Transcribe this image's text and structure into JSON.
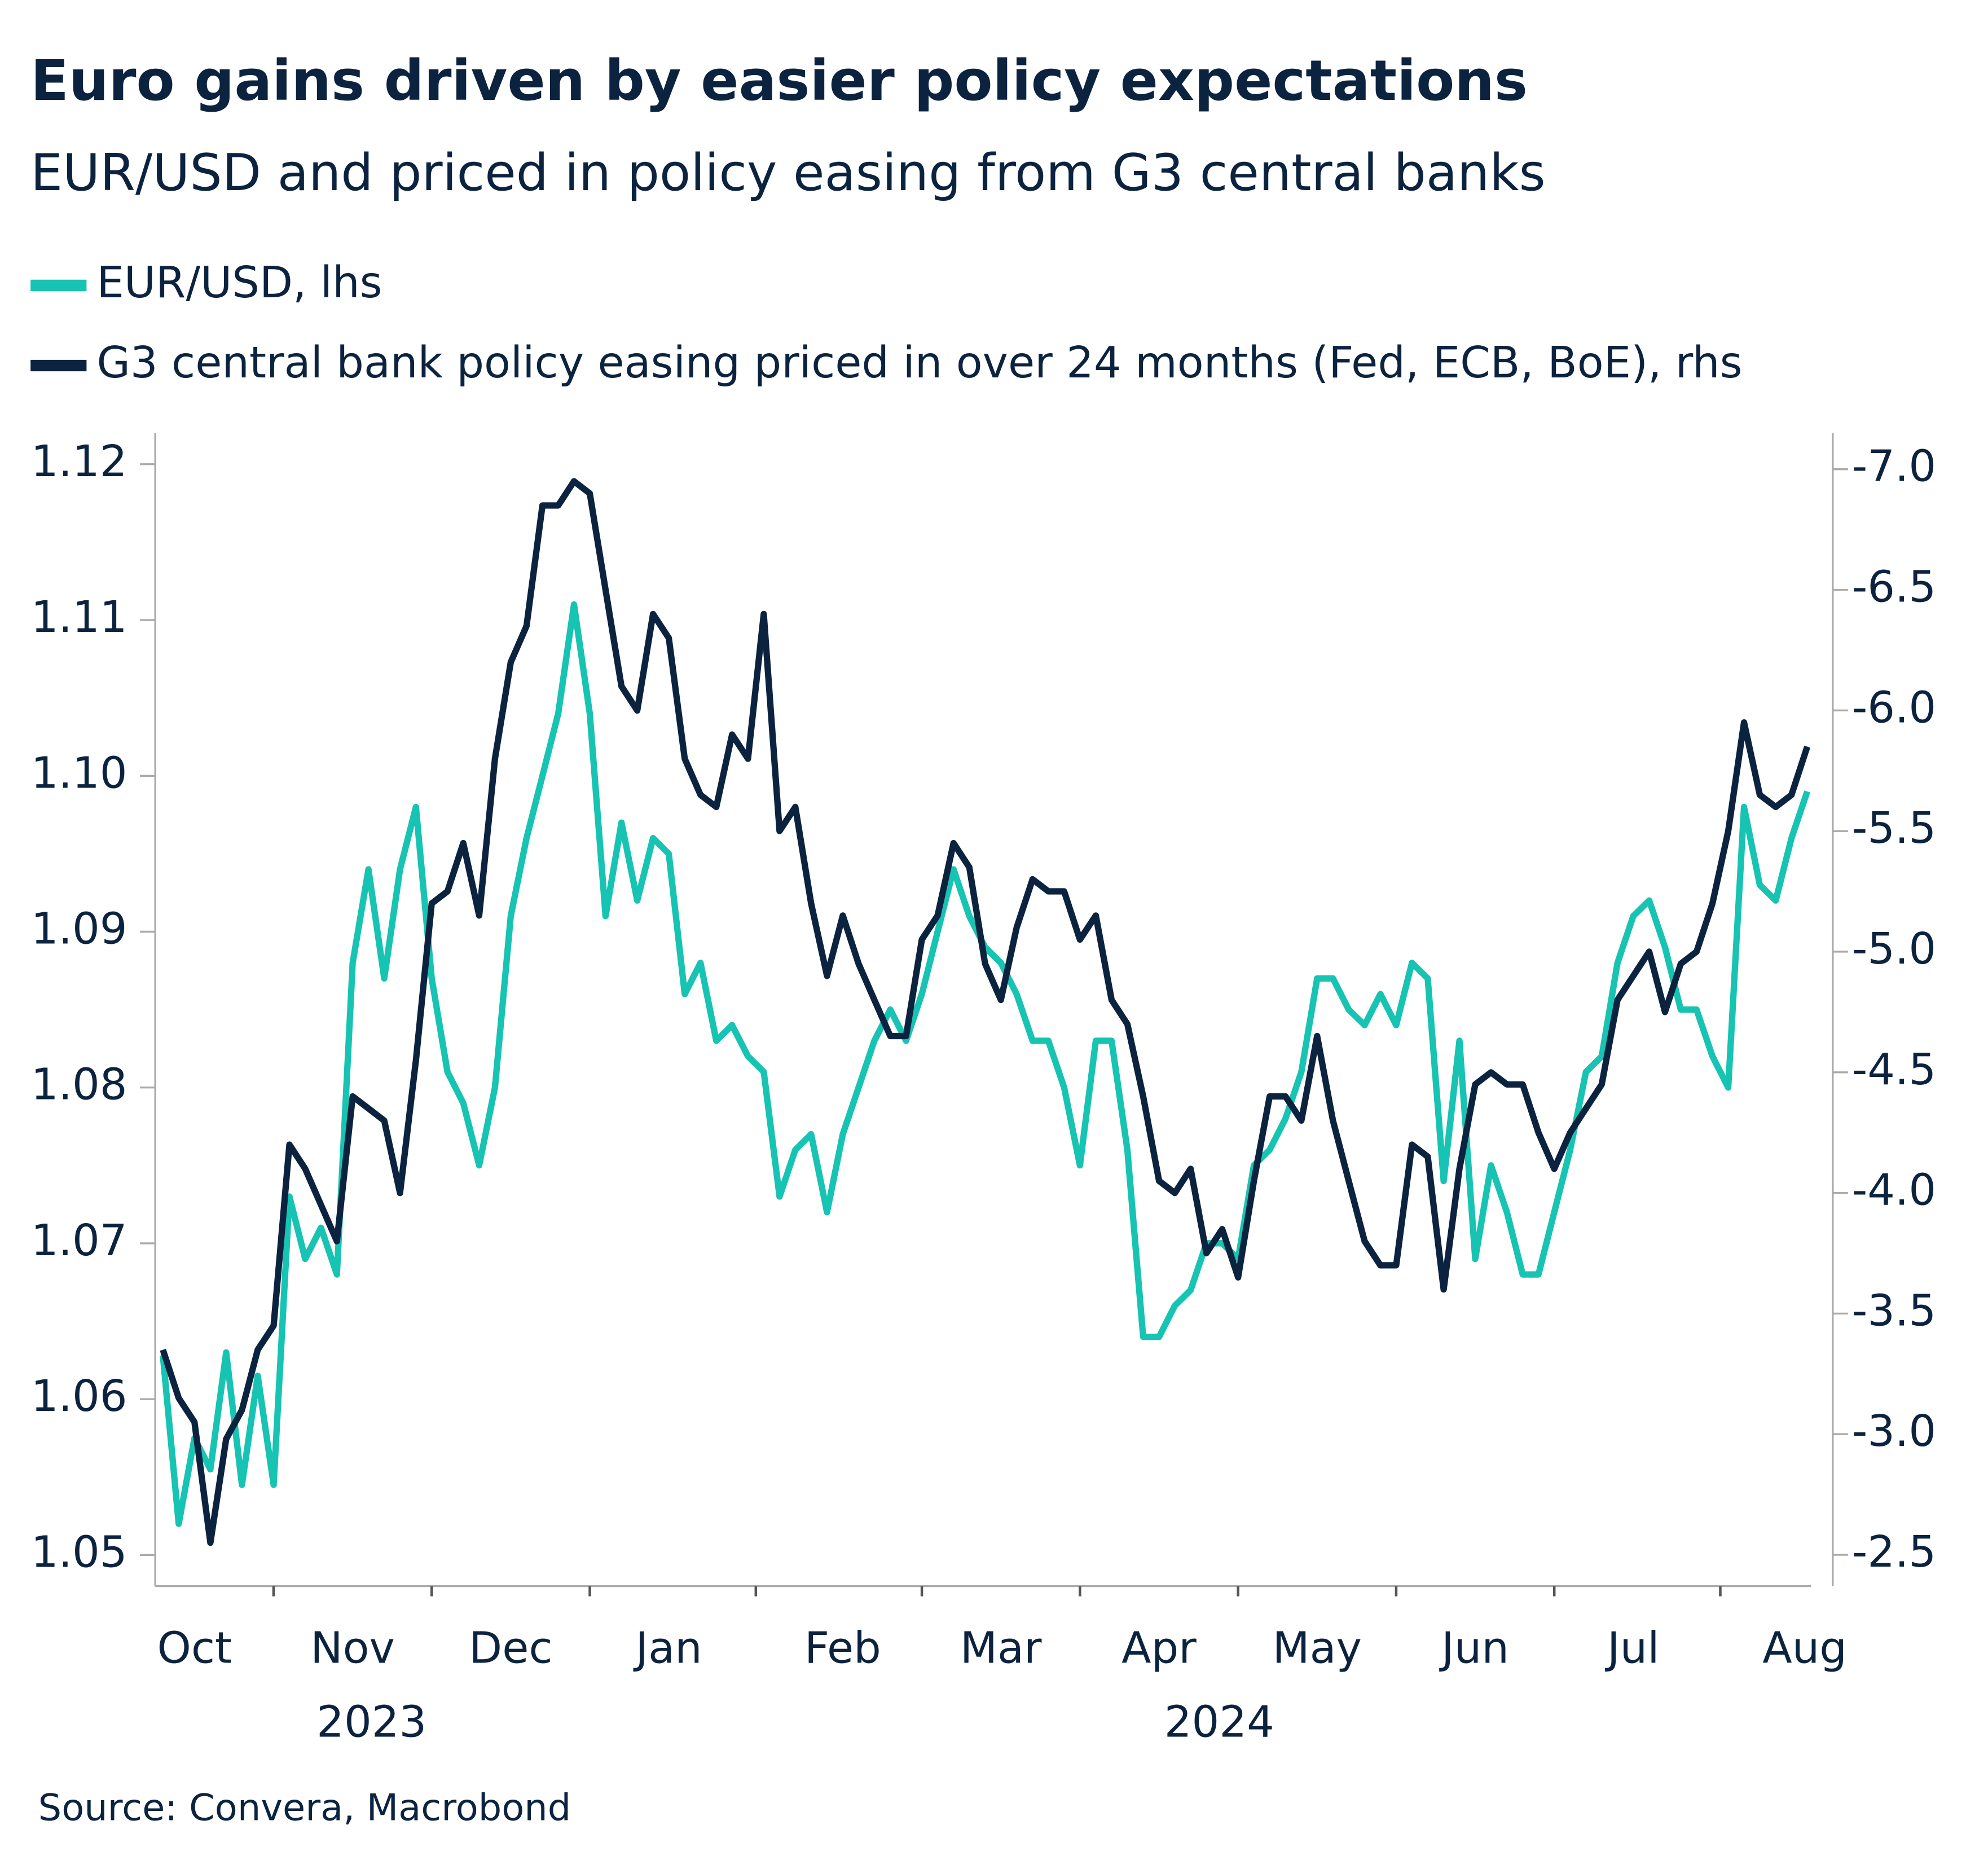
{
  "chart_data": {
    "type": "line",
    "title": "Euro gains driven by easier policy expectations",
    "subtitle": "EUR/USD and priced in policy easing from G3 central banks",
    "source": "Source: Convera, Macrobond",
    "legend": "top-left",
    "years": [
      "2023",
      "2024"
    ],
    "categories": [
      null,
      null,
      "Oct",
      null,
      null,
      null,
      null,
      null,
      null,
      null,
      null,
      null,
      "Nov",
      null,
      null,
      null,
      null,
      null,
      null,
      null,
      null,
      null,
      "Dec",
      null,
      null,
      null,
      null,
      null,
      null,
      null,
      null,
      null,
      "Jan",
      null,
      null,
      null,
      null,
      null,
      null,
      null,
      null,
      null,
      null,
      "Feb",
      null,
      null,
      null,
      null,
      null,
      null,
      null,
      null,
      null,
      "Mar",
      null,
      null,
      null,
      null,
      null,
      null,
      null,
      null,
      null,
      "Apr",
      null,
      null,
      null,
      null,
      null,
      null,
      null,
      null,
      null,
      "May",
      null,
      null,
      null,
      null,
      null,
      null,
      null,
      null,
      null,
      "Jun",
      null,
      null,
      null,
      null,
      null,
      null,
      null,
      null,
      null,
      "Jul",
      null,
      null,
      null,
      null,
      null,
      null,
      null,
      null,
      null,
      null,
      "Aug"
    ],
    "series": [
      {
        "name": "EUR/USD, lhs",
        "color": "#17c3b2",
        "values": [
          1.0628,
          1.052,
          1.0575,
          1.0555,
          1.063,
          1.0545,
          1.0615,
          1.0545,
          1.073,
          1.069,
          1.071,
          1.068,
          1.088,
          1.094,
          1.087,
          1.094,
          1.098,
          1.087,
          1.081,
          1.079,
          1.075,
          1.08,
          1.091,
          1.096,
          1.1,
          1.104,
          1.111,
          1.104,
          1.091,
          1.097,
          1.092,
          1.096,
          1.095,
          1.086,
          1.088,
          1.083,
          1.084,
          1.082,
          1.081,
          1.073,
          1.076,
          1.077,
          1.072,
          1.077,
          1.08,
          1.083,
          1.085,
          1.083,
          1.086,
          1.09,
          1.094,
          1.091,
          1.089,
          1.088,
          1.086,
          1.083,
          1.083,
          1.08,
          1.075,
          1.083,
          1.083,
          1.076,
          1.064,
          1.064,
          1.066,
          1.067,
          1.07,
          1.07,
          1.069,
          1.075,
          1.076,
          1.078,
          1.081,
          1.087,
          1.087,
          1.085,
          1.084,
          1.086,
          1.084,
          1.088,
          1.087,
          1.074,
          1.083,
          1.069,
          1.075,
          1.072,
          1.068,
          1.068,
          1.072,
          1.076,
          1.081,
          1.082,
          1.088,
          1.091,
          1.092,
          1.089,
          1.085,
          1.085,
          1.082,
          1.08,
          1.098,
          1.093,
          1.092,
          1.096,
          1.099
        ]
      },
      {
        "name": "G3 central bank policy easing priced in over 24 months (Fed, ECB, BoE), rhs",
        "color": "#0c2340",
        "axis": "y2",
        "values": [
          -3.35,
          -3.15,
          -3.05,
          -2.55,
          -2.98,
          -3.1,
          -3.35,
          -3.45,
          -4.2,
          -4.1,
          -3.95,
          -3.8,
          -4.4,
          -4.35,
          -4.3,
          -4.0,
          -4.55,
          -5.2,
          -5.25,
          -5.45,
          -5.15,
          -5.8,
          -6.2,
          -6.35,
          -6.85,
          -6.85,
          -6.95,
          -6.9,
          -6.5,
          -6.1,
          -6.0,
          -6.4,
          -6.3,
          -5.8,
          -5.65,
          -5.6,
          -5.9,
          -5.8,
          -6.4,
          -5.5,
          -5.6,
          -5.2,
          -4.9,
          -5.15,
          -4.95,
          -4.8,
          -4.65,
          -4.65,
          -5.05,
          -5.15,
          -5.45,
          -5.35,
          -4.95,
          -4.8,
          -5.1,
          -5.3,
          -5.25,
          -5.25,
          -5.05,
          -5.15,
          -4.8,
          -4.7,
          -4.4,
          -4.05,
          -4.0,
          -4.1,
          -3.75,
          -3.85,
          -3.65,
          -4.05,
          -4.4,
          -4.4,
          -4.3,
          -4.65,
          -4.3,
          -4.05,
          -3.8,
          -3.7,
          -3.7,
          -4.2,
          -4.15,
          -3.6,
          -4.1,
          -4.45,
          -4.5,
          -4.45,
          -4.45,
          -4.25,
          -4.1,
          -4.25,
          -4.35,
          -4.45,
          -4.8,
          -4.9,
          -5.0,
          -4.75,
          -4.95,
          -5.0,
          -5.2,
          -5.5,
          -5.95,
          -5.65,
          -5.6,
          -5.65,
          -5.85
        ]
      }
    ],
    "ylim": [
      1.048,
      1.122
    ],
    "yticks": [
      1.05,
      1.06,
      1.07,
      1.08,
      1.09,
      {
        "value": 1.1,
        "label": "1.10"
      },
      1.11,
      1.12
    ],
    "y2lim": [
      -2.37,
      -7.15
    ],
    "y2ticks": [
      {
        "value": -7,
        "label": "-7.0"
      },
      -6.5,
      {
        "value": -6,
        "label": "-6.0"
      },
      -5.5,
      {
        "value": -5,
        "label": "-5.0"
      },
      -4.5,
      {
        "value": -4,
        "label": "-4.0"
      },
      -3.5,
      {
        "value": -3,
        "label": "-3.0"
      },
      -2.5
    ]
  }
}
